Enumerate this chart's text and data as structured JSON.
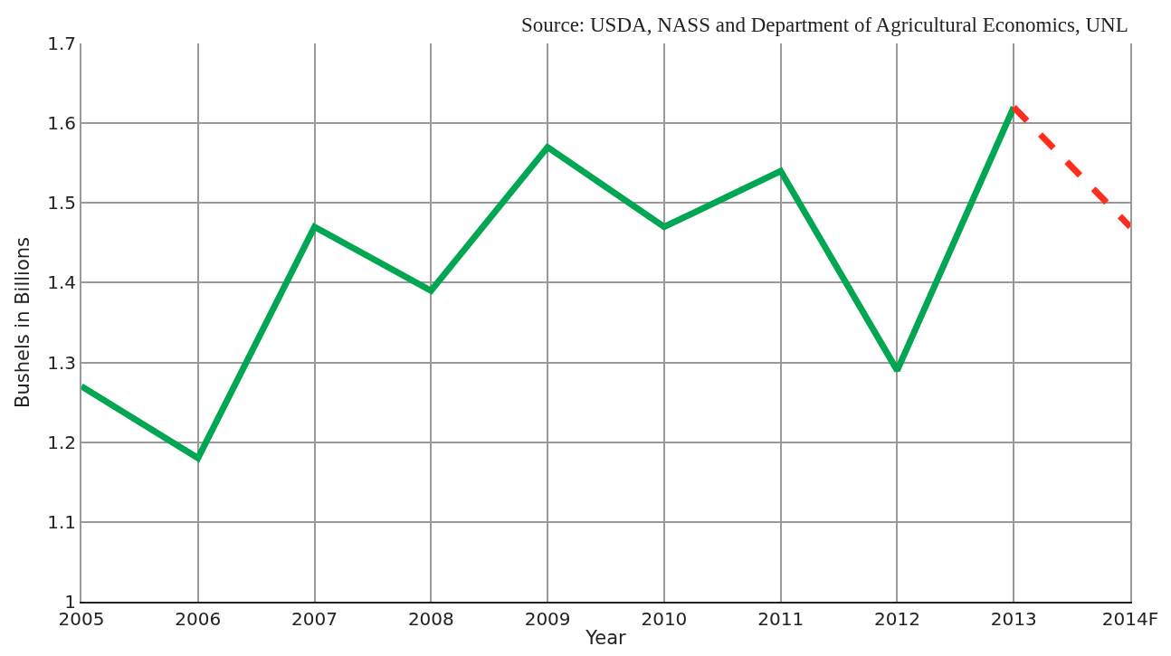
{
  "chart_data": {
    "type": "line",
    "xlabel": "Year",
    "ylabel": "Bushels in Billions",
    "annotations": [
      "Source: USDA, NASS and Department of Agricultural Economics, UNL"
    ],
    "categories": [
      "2005",
      "2006",
      "2007",
      "2008",
      "2009",
      "2010",
      "2011",
      "2012",
      "2013",
      "2014F"
    ],
    "series": [
      {
        "color": "#00a651",
        "line_style": "solid",
        "values": [
          1.27,
          1.18,
          1.47,
          1.39,
          1.57,
          1.47,
          1.54,
          1.29,
          1.62,
          null
        ]
      },
      {
        "color": "#ff2d1e",
        "line_style": "dashed",
        "values": [
          null,
          null,
          null,
          null,
          null,
          null,
          null,
          null,
          1.62,
          1.47
        ]
      }
    ],
    "ylim": [
      1,
      1.7
    ],
    "yticks": [
      1,
      1.1,
      1.2,
      1.3,
      1.4,
      1.5,
      1.6,
      1.7
    ],
    "grid": true,
    "legend": false,
    "marker": "none"
  }
}
